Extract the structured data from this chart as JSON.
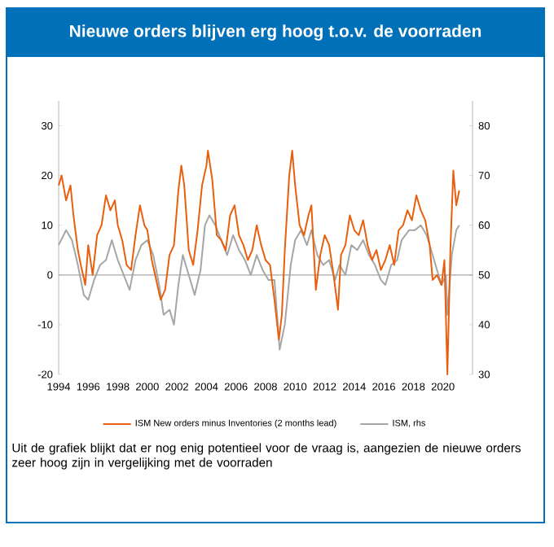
{
  "chart_data": {
    "type": "line",
    "title": "Nieuwe orders blijven erg hoog t.o.v. de voorraden",
    "annotations": [
      "Uit de grafiek blijkt dat er nog enig potentieel voor de vraag is, aangezien de nieuwe orders zeer hoog zijn in vergelijking met de voorraden"
    ],
    "xlim": [
      1994,
      2022
    ],
    "xticks": [
      1994,
      1996,
      1998,
      2000,
      2002,
      2004,
      2006,
      2008,
      2010,
      2012,
      2014,
      2016,
      2018,
      2020
    ],
    "ylim": [
      -20,
      35
    ],
    "yticks": [
      -20,
      -10,
      0,
      10,
      20,
      30
    ],
    "y2lim": [
      30,
      85
    ],
    "y2ticks": [
      30,
      40,
      50,
      60,
      70,
      80
    ],
    "legend": "bottom",
    "grid": false,
    "marker": "none",
    "line_style": "solid",
    "ref_lines": [
      {
        "axis": "y",
        "value": 0,
        "color": "#a6a6a6"
      }
    ],
    "series": [
      {
        "name": "ISM New orders minus Inventories (2 months lead)",
        "color": "#e8600f",
        "x": [
          1994.0,
          1994.2,
          1994.5,
          1994.8,
          1995.0,
          1995.3,
          1995.5,
          1995.8,
          1996.0,
          1996.3,
          1996.6,
          1996.9,
          1997.2,
          1997.5,
          1997.8,
          1998.0,
          1998.3,
          1998.6,
          1998.9,
          1999.2,
          1999.5,
          1999.8,
          2000.0,
          2000.3,
          2000.6,
          2000.9,
          2001.2,
          2001.5,
          2001.8,
          2002.1,
          2002.3,
          2002.5,
          2002.8,
          2003.1,
          2003.4,
          2003.7,
          2004.0,
          2004.1,
          2004.4,
          2004.7,
          2005.0,
          2005.3,
          2005.6,
          2005.9,
          2006.2,
          2006.5,
          2006.8,
          2007.1,
          2007.4,
          2007.7,
          2008.0,
          2008.3,
          2008.6,
          2008.9,
          2009.1,
          2009.3,
          2009.6,
          2009.8,
          2010.0,
          2010.3,
          2010.6,
          2010.9,
          2011.1,
          2011.4,
          2011.7,
          2012.0,
          2012.3,
          2012.6,
          2012.9,
          2013.1,
          2013.4,
          2013.7,
          2014.0,
          2014.3,
          2014.6,
          2014.9,
          2015.2,
          2015.5,
          2015.8,
          2016.1,
          2016.4,
          2016.7,
          2017.0,
          2017.3,
          2017.6,
          2017.9,
          2018.2,
          2018.5,
          2018.8,
          2019.1,
          2019.3,
          2019.6,
          2019.9,
          2020.1,
          2020.3,
          2020.5,
          2020.7,
          2020.9,
          2021.1
        ],
        "values": [
          18,
          20,
          15,
          18,
          12,
          5,
          2,
          -2,
          6,
          0,
          8,
          10,
          16,
          13,
          15,
          10,
          7,
          2,
          1,
          8,
          14,
          10,
          9,
          3,
          -1,
          -5,
          -3,
          4,
          6,
          17,
          22,
          18,
          5,
          2,
          9,
          18,
          22,
          25,
          19,
          8,
          7,
          5,
          12,
          14,
          8,
          6,
          3,
          5,
          10,
          6,
          3,
          2,
          -5,
          -13,
          -8,
          5,
          20,
          25,
          18,
          10,
          8,
          12,
          14,
          -3,
          4,
          8,
          6,
          0,
          -7,
          4,
          6,
          12,
          9,
          8,
          11,
          6,
          3,
          5,
          1,
          3,
          6,
          2,
          9,
          10,
          13,
          11,
          16,
          13,
          11,
          6,
          -1,
          0,
          -2,
          3,
          -20,
          5,
          21,
          14,
          17
        ]
      },
      {
        "name": "ISM, rhs",
        "color": "#a6a6a6",
        "axis": "y2",
        "x": [
          1994.0,
          1994.5,
          1994.9,
          1995.3,
          1995.7,
          1996.0,
          1996.4,
          1996.8,
          1997.2,
          1997.6,
          1998.0,
          1998.4,
          1998.8,
          1999.2,
          1999.6,
          2000.0,
          2000.4,
          2000.8,
          2001.1,
          2001.5,
          2001.8,
          2002.1,
          2002.4,
          2002.8,
          2003.2,
          2003.6,
          2003.9,
          2004.2,
          2004.6,
          2005.0,
          2005.4,
          2005.8,
          2006.2,
          2006.6,
          2007.0,
          2007.4,
          2007.8,
          2008.2,
          2008.6,
          2008.95,
          2009.3,
          2009.7,
          2010.0,
          2010.4,
          2010.8,
          2011.1,
          2011.5,
          2011.9,
          2012.3,
          2012.7,
          2013.0,
          2013.4,
          2013.8,
          2014.2,
          2014.6,
          2015.0,
          2015.4,
          2015.8,
          2016.1,
          2016.5,
          2016.9,
          2017.2,
          2017.7,
          2018.1,
          2018.5,
          2018.9,
          2019.2,
          2019.6,
          2019.9,
          2020.2,
          2020.3,
          2020.6,
          2020.9,
          2021.1
        ],
        "values": [
          56,
          59,
          57,
          52,
          46,
          45,
          49,
          52,
          53,
          57,
          53,
          50,
          47,
          53,
          56,
          57,
          54,
          48,
          42,
          43,
          40,
          48,
          54,
          50,
          46,
          51,
          60,
          62,
          60,
          57,
          54,
          58,
          55,
          53,
          50,
          54,
          51,
          49,
          49,
          35,
          40,
          52,
          57,
          59,
          56,
          59,
          54,
          52,
          53,
          49,
          52,
          50,
          56,
          55,
          57,
          54,
          52,
          49,
          48,
          52,
          53,
          57,
          59,
          59,
          60,
          58,
          55,
          51,
          48,
          50,
          42,
          54,
          59,
          60
        ]
      }
    ]
  }
}
